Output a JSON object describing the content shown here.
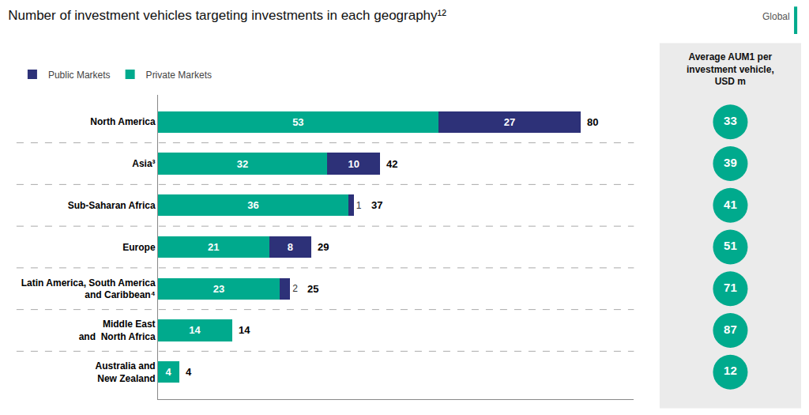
{
  "chart_data": [
    {
      "type": "bar",
      "title": "Number of investment vehicles targeting investments in each geography¹²",
      "orientation": "horizontal",
      "stacked": true,
      "data_labels": true,
      "tick_labels": false,
      "grid": false,
      "legend": "top left",
      "xlim": [
        0,
        90
      ],
      "categories": [
        "North America",
        "Asia³",
        "Sub-Saharan Africa",
        "Europe",
        "Latin America, South America\nand Caribbean⁴",
        "Middle East\nand  North Africa",
        "Australia and\nNew Zealand"
      ],
      "series": [
        {
          "name": "Private Markets",
          "color": "#00aa8d",
          "values": [
            53,
            32,
            36,
            21,
            23,
            14,
            4
          ]
        },
        {
          "name": "Public Markets",
          "color": "#2d3178",
          "values": [
            27,
            10,
            1,
            8,
            2,
            0,
            0
          ]
        }
      ],
      "totals": [
        80,
        42,
        37,
        29,
        25,
        14,
        4
      ],
      "annotations": [
        {
          "text": "Global",
          "color": "#00aa8d"
        }
      ]
    },
    {
      "type": "scatter",
      "title": "Average AUM1 per\ninvestment vehicle,\nUSD m",
      "categories": [
        "North America",
        "Asia³",
        "Sub-Saharan Africa",
        "Europe",
        "Latin America, South America\nand Caribbean⁴",
        "Middle East\nand  North Africa",
        "Australia and\nNew Zealand"
      ],
      "values": [
        33,
        39,
        41,
        51,
        71,
        87,
        12
      ],
      "color": "#00aa8d",
      "marker": "circle",
      "data_labels": true,
      "tick_labels": false
    }
  ]
}
